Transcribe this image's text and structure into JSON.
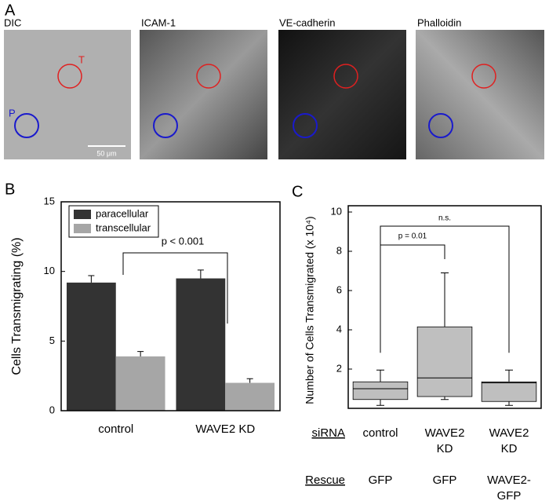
{
  "panel_a": {
    "label": "A",
    "images": [
      {
        "title": "DIC"
      },
      {
        "title": "ICAM-1"
      },
      {
        "title": "VE-cadherin"
      },
      {
        "title": "Phalloidin"
      }
    ],
    "markers": [
      "T",
      "P"
    ],
    "scale_bar": "50 μm"
  },
  "chart_data": [
    {
      "type": "bar",
      "panel": "B",
      "ylabel": "Cells Transmigrating (%)",
      "categories": [
        "control",
        "WAVE2 KD"
      ],
      "series": [
        {
          "name": "paracellular",
          "color": "#333333",
          "values": [
            9.2,
            9.5
          ],
          "errors": [
            0.5,
            0.6
          ]
        },
        {
          "name": "transcellular",
          "color": "#a6a6a6",
          "values": [
            3.9,
            2.0
          ],
          "errors": [
            0.35,
            0.3
          ]
        }
      ],
      "ylim": [
        0,
        15
      ],
      "yticks": [
        0,
        5,
        10,
        15
      ],
      "legend": "upper left",
      "annotations": [
        "p < 0.001"
      ]
    },
    {
      "type": "box",
      "panel": "C",
      "ylabel": "Number of Cells Transmigrated (x 10⁴)",
      "color": "#bfbfbf",
      "groups": [
        {
          "min": 0.15,
          "q1": 0.45,
          "median": 1.0,
          "q3": 1.35,
          "max": 1.95
        },
        {
          "min": 0.45,
          "q1": 0.6,
          "median": 1.55,
          "q3": 4.15,
          "max": 6.9
        },
        {
          "min": 0.15,
          "q1": 0.35,
          "median": 1.3,
          "q3": 1.35,
          "max": 1.95
        }
      ],
      "ylim": [
        0,
        10
      ],
      "yticks": [
        2,
        4,
        6,
        8,
        10
      ],
      "annotations": [
        "p = 0.01",
        "n.s."
      ],
      "table": {
        "rows": [
          {
            "header": "siRNA",
            "cells": [
              [
                "control"
              ],
              [
                "WAVE2",
                "KD"
              ],
              [
                "WAVE2",
                "KD"
              ]
            ]
          },
          {
            "header": "Rescue",
            "cells": [
              [
                "GFP"
              ],
              [
                "GFP"
              ],
              [
                "WAVE2-",
                "GFP"
              ]
            ]
          }
        ]
      }
    }
  ]
}
